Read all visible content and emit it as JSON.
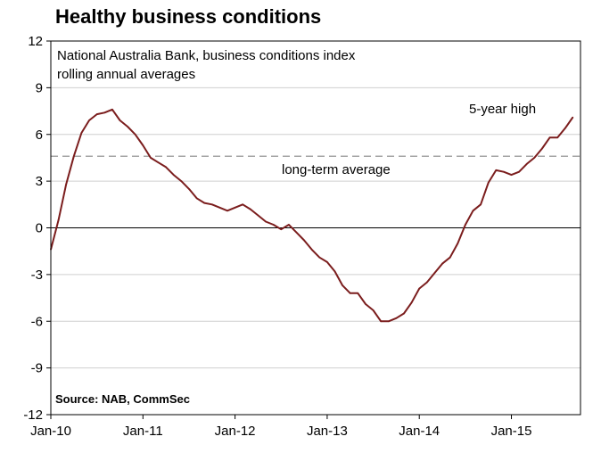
{
  "chart_data": {
    "type": "line",
    "title": "Healthy business conditions",
    "subtitle": [
      "National Australia Bank, business conditions index",
      "rolling annual averages"
    ],
    "source": "Source: NAB, CommSec",
    "annotations": {
      "reference_line_label": "long-term average",
      "high_label": "5-year high"
    },
    "reference_line": {
      "value": 4.6,
      "style": "dashed",
      "color": "#a6a6a6"
    },
    "zero_line": true,
    "grid": true,
    "ylim": [
      -12,
      12
    ],
    "y_ticks": [
      "12",
      "9",
      "6",
      "3",
      "0",
      "-3",
      "-6",
      "-9",
      "-12"
    ],
    "y_tick_values": [
      12,
      9,
      6,
      3,
      0,
      -3,
      -6,
      -9,
      -12
    ],
    "xlim": [
      "2010-01",
      "2015-10"
    ],
    "x_ticks": [
      "Jan-10",
      "Jan-11",
      "Jan-12",
      "Jan-13",
      "Jan-14",
      "Jan-15"
    ],
    "series": [
      {
        "color": "#7b1d1d",
        "points": [
          [
            "2010-01",
            -1.4
          ],
          [
            "2010-02",
            0.5
          ],
          [
            "2010-03",
            2.8
          ],
          [
            "2010-04",
            4.6
          ],
          [
            "2010-05",
            6.1
          ],
          [
            "2010-06",
            6.9
          ],
          [
            "2010-07",
            7.3
          ],
          [
            "2010-08",
            7.4
          ],
          [
            "2010-09",
            7.6
          ],
          [
            "2010-10",
            6.9
          ],
          [
            "2010-11",
            6.5
          ],
          [
            "2010-12",
            6.0
          ],
          [
            "2011-01",
            5.3
          ],
          [
            "2011-02",
            4.5
          ],
          [
            "2011-03",
            4.2
          ],
          [
            "2011-04",
            3.9
          ],
          [
            "2011-05",
            3.4
          ],
          [
            "2011-06",
            3.0
          ],
          [
            "2011-07",
            2.5
          ],
          [
            "2011-08",
            1.9
          ],
          [
            "2011-09",
            1.6
          ],
          [
            "2011-10",
            1.5
          ],
          [
            "2011-11",
            1.3
          ],
          [
            "2011-12",
            1.1
          ],
          [
            "2012-01",
            1.3
          ],
          [
            "2012-02",
            1.5
          ],
          [
            "2012-03",
            1.2
          ],
          [
            "2012-04",
            0.8
          ],
          [
            "2012-05",
            0.4
          ],
          [
            "2012-06",
            0.2
          ],
          [
            "2012-07",
            -0.1
          ],
          [
            "2012-08",
            0.2
          ],
          [
            "2012-09",
            -0.3
          ],
          [
            "2012-10",
            -0.8
          ],
          [
            "2012-11",
            -1.4
          ],
          [
            "2012-12",
            -1.9
          ],
          [
            "2013-01",
            -2.2
          ],
          [
            "2013-02",
            -2.8
          ],
          [
            "2013-03",
            -3.7
          ],
          [
            "2013-04",
            -4.2
          ],
          [
            "2013-05",
            -4.2
          ],
          [
            "2013-06",
            -4.9
          ],
          [
            "2013-07",
            -5.3
          ],
          [
            "2013-08",
            -6.0
          ],
          [
            "2013-09",
            -6.0
          ],
          [
            "2013-10",
            -5.8
          ],
          [
            "2013-11",
            -5.5
          ],
          [
            "2013-12",
            -4.8
          ],
          [
            "2014-01",
            -3.9
          ],
          [
            "2014-02",
            -3.5
          ],
          [
            "2014-03",
            -2.9
          ],
          [
            "2014-04",
            -2.3
          ],
          [
            "2014-05",
            -1.9
          ],
          [
            "2014-06",
            -1.0
          ],
          [
            "2014-07",
            0.2
          ],
          [
            "2014-08",
            1.1
          ],
          [
            "2014-09",
            1.5
          ],
          [
            "2014-10",
            2.9
          ],
          [
            "2014-11",
            3.7
          ],
          [
            "2014-12",
            3.6
          ],
          [
            "2015-01",
            3.4
          ],
          [
            "2015-02",
            3.6
          ],
          [
            "2015-03",
            4.1
          ],
          [
            "2015-04",
            4.5
          ],
          [
            "2015-05",
            5.1
          ],
          [
            "2015-06",
            5.8
          ],
          [
            "2015-07",
            5.8
          ],
          [
            "2015-08",
            6.4
          ],
          [
            "2015-09",
            7.1
          ]
        ]
      }
    ]
  }
}
